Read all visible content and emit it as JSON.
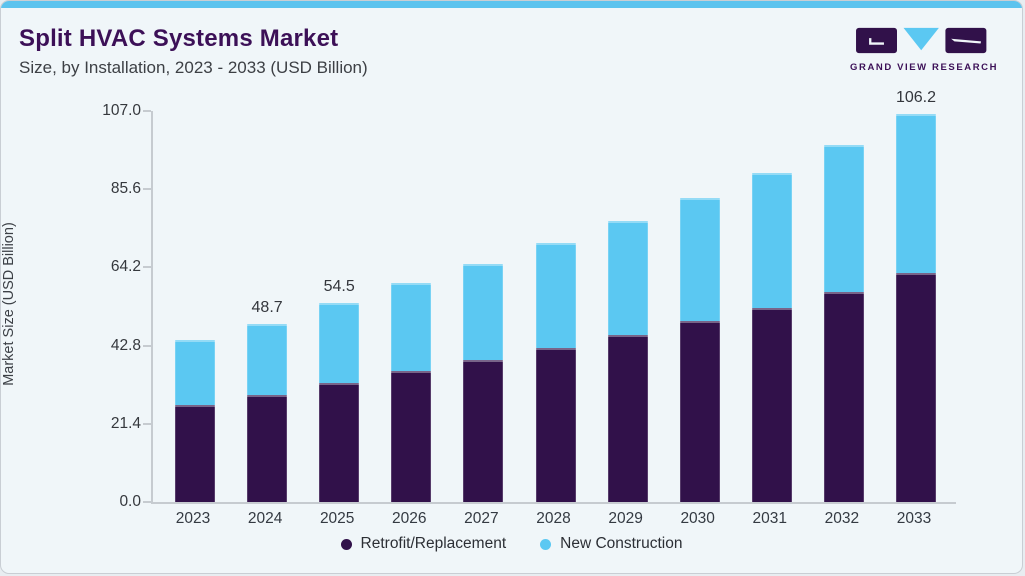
{
  "header": {
    "title": "Split HVAC Systems Market",
    "subtitle": "Size, by Installation, 2023 - 2033 (USD Billion)"
  },
  "brand": {
    "wordmark": "GRAND VIEW RESEARCH"
  },
  "colors": {
    "brand_purple": "#3C1057",
    "top_strip_blue": "#5CC3EE",
    "retrofit_purple": "#31114A",
    "new_construction_blue": "#5BC8F2",
    "axis_gray": "#C6CBD0",
    "card_background": "#F0F6F9"
  },
  "chart_data": {
    "type": "bar",
    "stacked": true,
    "title": "Split HVAC Systems Market",
    "subtitle": "Size, by Installation, 2023 - 2033 (USD Billion)",
    "categories": [
      "2023",
      "2024",
      "2025",
      "2026",
      "2027",
      "2028",
      "2029",
      "2030",
      "2031",
      "2032",
      "2033"
    ],
    "series": [
      {
        "name": "Retrofit/Replacement",
        "color": "#31114A",
        "values": [
          26.5,
          29.3,
          32.6,
          35.8,
          38.9,
          42.1,
          45.8,
          49.4,
          53.1,
          57.5,
          62.7
        ]
      },
      {
        "name": "New Construction",
        "color": "#5BC8F2",
        "values": [
          17.7,
          19.4,
          21.9,
          24.0,
          26.2,
          28.7,
          31.1,
          33.8,
          36.9,
          40.1,
          43.5
        ]
      }
    ],
    "totals": [
      44.2,
      48.7,
      54.5,
      59.8,
      65.1,
      70.8,
      76.9,
      83.2,
      90.0,
      97.6,
      106.2
    ],
    "shown_total_labels": {
      "2024": "48.7",
      "2025": "54.5",
      "2033": "106.2"
    },
    "xlabel": "",
    "ylabel": "Market Size (USD Billion)",
    "y_ticks": [
      "0.0",
      "21.4",
      "42.8",
      "64.2",
      "85.6",
      "107.0"
    ],
    "ylim": [
      0,
      107
    ],
    "grid": false,
    "legend_position": "bottom"
  }
}
